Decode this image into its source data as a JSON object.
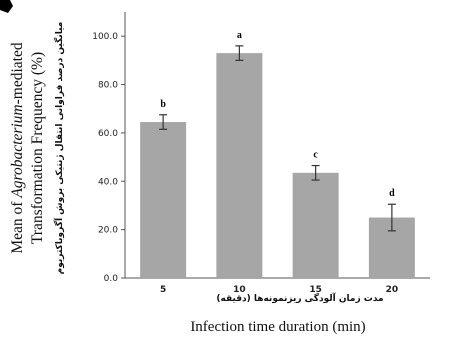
{
  "chart_data": {
    "type": "bar",
    "categories": [
      "5",
      "10",
      "15",
      "20"
    ],
    "values": [
      64.5,
      93.0,
      43.5,
      25.0
    ],
    "errors": [
      3.0,
      3.0,
      3.0,
      5.5
    ],
    "significance": [
      "b",
      "a",
      "c",
      "d"
    ],
    "ylim": [
      0,
      110
    ],
    "yticks": [
      "0.0",
      "20.0",
      "40.0",
      "60.0",
      "80.0",
      "100.0"
    ],
    "ylabel_en_line1": "Mean of Agrobacterium-mediated",
    "ylabel_en_line1_prefix": "Mean of ",
    "ylabel_en_line1_italic": "Agrobacterium",
    "ylabel_en_line1_suffix": "-mediated",
    "ylabel_en_line2": "Transformation Frequency (%)",
    "ylabel_fa": "میانگین درصد فراوانی انتقال ژنتیکی بروش آگروباکتریوم",
    "xlabel_fa": "مدت زمان آلودگی ریزنمونه‌ها (دقیقه)",
    "xlabel_en": "Infection time duration (min)",
    "bar_color": "#a6a6a6",
    "grid": false
  }
}
